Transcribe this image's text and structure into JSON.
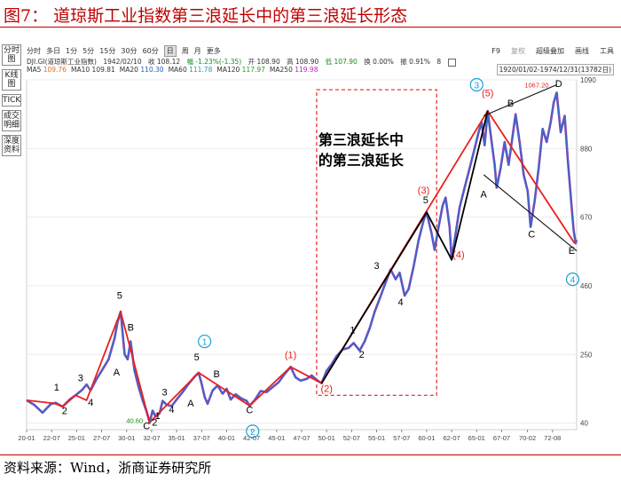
{
  "figure_title": "图7：  道琼斯工业指数第三浪延长中的第三浪延长形态",
  "source": "资料来源：Wind，浙商证券研究所",
  "sidebar": [
    "分时图",
    "K线图",
    "TICK",
    "成交明细",
    "深度资料"
  ],
  "toolbar": {
    "periods": [
      "分时",
      "多日",
      "1分",
      "5分",
      "15分",
      "30分",
      "60分",
      "日",
      "周",
      "月",
      "更多"
    ],
    "selected": "日",
    "right_items": [
      "F9",
      "复权",
      "超级叠加",
      "画线",
      "工具"
    ]
  },
  "info_line": {
    "ticker": "DJI.GI(道琼斯工业指数)",
    "date": "1942/02/10",
    "close": "收 108.12",
    "change": "幅 -1.23%(-1.35)",
    "open": "开 108.90",
    "high": "高 108.90",
    "low": "低 107.90",
    "turnover": "换 0.00%",
    "amplitude": "振 0.91%",
    "count": "8"
  },
  "ma_line": [
    {
      "label": "MA5",
      "value": "109.76",
      "color": "#e07020"
    },
    {
      "label": "MA10",
      "value": "109.81",
      "color": "#333333"
    },
    {
      "label": "MA20",
      "value": "110.30",
      "color": "#1f5fd0"
    },
    {
      "label": "MA60",
      "value": "111.78",
      "color": "#18a0c0"
    },
    {
      "label": "MA120",
      "value": "117.97",
      "color": "#20a020"
    },
    {
      "label": "MA250",
      "value": "119.98",
      "color": "#c020c0"
    }
  ],
  "range_label": "1920/01/02-1974/12/31(13782日)",
  "colors": {
    "title_red": "#c00000",
    "wave_red": "#e8201e",
    "price_blue": "#2f6fd0",
    "circle_blue": "#18a0d8",
    "label_red": "#e8201e"
  },
  "chart_data": {
    "type": "line",
    "title": "",
    "y_axis": {
      "ticks": [
        40,
        250,
        460,
        670,
        880,
        1090
      ],
      "ylim": [
        20,
        1090
      ]
    },
    "x_ticks": [
      "20-01",
      "22-07",
      "25-01",
      "27-07",
      "30-01",
      "32-07",
      "35-01",
      "37-07",
      "40-01",
      "42-07",
      "45-01",
      "47-07",
      "50-01",
      "52-07",
      "55-01",
      "57-07",
      "60-01",
      "62-07",
      "65-01",
      "67-07",
      "70-02",
      "72-08"
    ],
    "xlim": [
      1920.0,
      1975.0
    ],
    "series": [
      {
        "values": [
          [
            1920.0,
            110
          ],
          [
            1920.8,
            95
          ],
          [
            1921.6,
            72
          ],
          [
            1922.4,
            98
          ],
          [
            1922.9,
            102
          ],
          [
            1923.6,
            90
          ],
          [
            1924.3,
            112
          ],
          [
            1924.9,
            125
          ],
          [
            1925.5,
            140
          ],
          [
            1926.0,
            158
          ],
          [
            1926.4,
            140
          ],
          [
            1927.0,
            175
          ],
          [
            1927.6,
            205
          ],
          [
            1928.2,
            235
          ],
          [
            1928.8,
            300
          ],
          [
            1929.1,
            350
          ],
          [
            1929.4,
            381
          ],
          [
            1929.8,
            250
          ],
          [
            1930.1,
            235
          ],
          [
            1930.4,
            290
          ],
          [
            1930.8,
            200
          ],
          [
            1931.2,
            150
          ],
          [
            1931.6,
            110
          ],
          [
            1932.0,
            75
          ],
          [
            1932.3,
            42
          ],
          [
            1932.6,
            78
          ],
          [
            1932.9,
            60
          ],
          [
            1933.3,
            70
          ],
          [
            1933.6,
            108
          ],
          [
            1934.0,
            96
          ],
          [
            1934.5,
            92
          ],
          [
            1935.0,
            112
          ],
          [
            1935.6,
            135
          ],
          [
            1936.2,
            160
          ],
          [
            1936.8,
            182
          ],
          [
            1937.2,
            194
          ],
          [
            1937.5,
            160
          ],
          [
            1937.8,
            120
          ],
          [
            1938.1,
            99
          ],
          [
            1938.6,
            140
          ],
          [
            1939.1,
            155
          ],
          [
            1939.6,
            130
          ],
          [
            1940.0,
            145
          ],
          [
            1940.4,
            112
          ],
          [
            1940.9,
            128
          ],
          [
            1941.5,
            115
          ],
          [
            1942.0,
            108
          ],
          [
            1942.3,
            93
          ],
          [
            1942.8,
            110
          ],
          [
            1943.4,
            138
          ],
          [
            1944.0,
            135
          ],
          [
            1944.6,
            150
          ],
          [
            1945.2,
            165
          ],
          [
            1945.8,
            190
          ],
          [
            1946.4,
            212
          ],
          [
            1946.9,
            180
          ],
          [
            1947.4,
            170
          ],
          [
            1948.0,
            175
          ],
          [
            1948.5,
            186
          ],
          [
            1949.0,
            172
          ],
          [
            1949.5,
            162
          ],
          [
            1950.0,
            200
          ],
          [
            1950.5,
            220
          ],
          [
            1951.0,
            245
          ],
          [
            1951.6,
            265
          ],
          [
            1952.2,
            270
          ],
          [
            1952.7,
            285
          ],
          [
            1953.3,
            262
          ],
          [
            1953.8,
            290
          ],
          [
            1954.3,
            330
          ],
          [
            1954.8,
            380
          ],
          [
            1955.3,
            420
          ],
          [
            1955.9,
            470
          ],
          [
            1956.4,
            510
          ],
          [
            1956.9,
            480
          ],
          [
            1957.3,
            500
          ],
          [
            1957.8,
            430
          ],
          [
            1958.2,
            450
          ],
          [
            1958.7,
            520
          ],
          [
            1959.2,
            600
          ],
          [
            1959.7,
            660
          ],
          [
            1960.0,
            685
          ],
          [
            1960.5,
            620
          ],
          [
            1960.8,
            570
          ],
          [
            1961.2,
            640
          ],
          [
            1961.6,
            705
          ],
          [
            1961.9,
            730
          ],
          [
            1962.3,
            640
          ],
          [
            1962.5,
            540
          ],
          [
            1962.8,
            600
          ],
          [
            1963.3,
            700
          ],
          [
            1963.8,
            760
          ],
          [
            1964.3,
            820
          ],
          [
            1964.8,
            880
          ],
          [
            1965.2,
            930
          ],
          [
            1965.5,
            960
          ],
          [
            1965.8,
            890
          ],
          [
            1966.1,
            995
          ],
          [
            1966.5,
            900
          ],
          [
            1966.8,
            830
          ],
          [
            1967.0,
            760
          ],
          [
            1967.4,
            820
          ],
          [
            1967.8,
            900
          ],
          [
            1968.2,
            830
          ],
          [
            1968.6,
            920
          ],
          [
            1968.9,
            985
          ],
          [
            1969.3,
            900
          ],
          [
            1969.7,
            800
          ],
          [
            1970.1,
            750
          ],
          [
            1970.4,
            640
          ],
          [
            1970.8,
            720
          ],
          [
            1971.2,
            820
          ],
          [
            1971.6,
            940
          ],
          [
            1972.0,
            900
          ],
          [
            1972.4,
            960
          ],
          [
            1972.7,
            1020
          ],
          [
            1973.0,
            1051
          ],
          [
            1973.4,
            930
          ],
          [
            1973.8,
            980
          ],
          [
            1974.1,
            850
          ],
          [
            1974.5,
            700
          ],
          [
            1974.7,
            630
          ],
          [
            1974.9,
            590
          ],
          [
            1975.0,
            600
          ]
        ]
      },
      {
        "values": [
          [
            1920.0,
            110
          ],
          [
            1922.8,
            100
          ],
          [
            1923.6,
            90
          ],
          [
            1924.9,
            125
          ],
          [
            1926.0,
            110
          ],
          [
            1929.4,
            381
          ],
          [
            1932.3,
            42
          ],
          [
            1937.2,
            194
          ],
          [
            1942.3,
            93
          ],
          [
            1946.4,
            212
          ],
          [
            1949.5,
            162
          ],
          [
            1966.1,
            995
          ],
          [
            1974.8,
            590
          ]
        ]
      },
      {
        "values": [
          [
            1949.5,
            162
          ],
          [
            1960.0,
            685
          ],
          [
            1962.5,
            540
          ],
          [
            1966.1,
            995
          ]
        ]
      }
    ],
    "annotations": {
      "labels": [
        {
          "text": "1",
          "x": 1923.0,
          "y": 140,
          "color": "#000000"
        },
        {
          "text": "2",
          "x": 1923.8,
          "y": 68,
          "color": "#000000"
        },
        {
          "text": "3",
          "x": 1925.4,
          "y": 168,
          "color": "#000000"
        },
        {
          "text": "4",
          "x": 1926.4,
          "y": 94,
          "color": "#000000"
        },
        {
          "text": "5",
          "x": 1929.3,
          "y": 420,
          "color": "#000000"
        },
        {
          "text": "A",
          "x": 1929.0,
          "y": 185,
          "color": "#000000"
        },
        {
          "text": "B",
          "x": 1930.4,
          "y": 323,
          "color": "#000000"
        },
        {
          "text": "C",
          "x": 1932.0,
          "y": 22,
          "color": "#000000"
        },
        {
          "text": "1",
          "x": 1933.1,
          "y": 52,
          "color": "#000000"
        },
        {
          "text": "2",
          "x": 1932.8,
          "y": 32,
          "color": "#000000"
        },
        {
          "text": "3",
          "x": 1933.8,
          "y": 125,
          "color": "#000000"
        },
        {
          "text": "4",
          "x": 1934.5,
          "y": 72,
          "color": "#000000"
        },
        {
          "text": "5",
          "x": 1937.0,
          "y": 232,
          "color": "#000000"
        },
        {
          "text": "A",
          "x": 1936.4,
          "y": 90,
          "color": "#000000"
        },
        {
          "text": "B",
          "x": 1939.0,
          "y": 180,
          "color": "#000000"
        },
        {
          "text": "C",
          "x": 1942.3,
          "y": 70,
          "color": "#000000"
        },
        {
          "text": "1",
          "x": 1952.6,
          "y": 315,
          "color": "#000000"
        },
        {
          "text": "2",
          "x": 1953.5,
          "y": 240,
          "color": "#000000"
        },
        {
          "text": "3",
          "x": 1955.0,
          "y": 512,
          "color": "#000000"
        },
        {
          "text": "4",
          "x": 1957.4,
          "y": 400,
          "color": "#000000"
        },
        {
          "text": "5",
          "x": 1959.9,
          "y": 712,
          "color": "#000000"
        },
        {
          "text": "B",
          "x": 1968.4,
          "y": 1008,
          "color": "#000000"
        },
        {
          "text": "D",
          "x": 1973.2,
          "y": 1068,
          "color": "#000000"
        },
        {
          "text": "A",
          "x": 1965.7,
          "y": 730,
          "color": "#000000"
        },
        {
          "text": "C",
          "x": 1970.5,
          "y": 608,
          "color": "#000000"
        },
        {
          "text": "E",
          "x": 1974.5,
          "y": 558,
          "color": "#000000"
        },
        {
          "text": "(1)",
          "x": 1946.4,
          "y": 238,
          "color": "#e8201e"
        },
        {
          "text": "(2)",
          "x": 1950.0,
          "y": 135,
          "color": "#e8201e"
        },
        {
          "text": "(3)",
          "x": 1959.7,
          "y": 742,
          "color": "#e8201e"
        },
        {
          "text": "(4)",
          "x": 1963.2,
          "y": 545,
          "color": "#e8201e"
        },
        {
          "text": "(5)",
          "x": 1966.1,
          "y": 1040,
          "color": "#e8201e"
        },
        {
          "text": "40.60",
          "x": 1930.8,
          "y": 40,
          "color": "#1a8a1a"
        },
        {
          "text": "1067.20",
          "x": 1971.0,
          "y": 1067,
          "color": "#e8201e"
        }
      ],
      "circled": [
        {
          "text": "1",
          "x": 1937.8,
          "y": 290
        },
        {
          "text": "2",
          "x": 1942.6,
          "y": 15
        },
        {
          "text": "3",
          "x": 1965.0,
          "y": 1075
        },
        {
          "text": "4",
          "x": 1974.6,
          "y": 480
        }
      ],
      "trendlines": [
        {
          "points": [
            [
              1965.7,
              980
            ],
            [
              1973.0,
              1075
            ]
          ]
        },
        {
          "points": [
            [
              1965.7,
              800
            ],
            [
              1975.0,
              567
            ]
          ]
        }
      ],
      "box": {
        "x_range": [
          1949.0,
          1961.0
        ],
        "y_range": [
          125,
          1060
        ],
        "text": [
          "第三浪延长中",
          "的第三浪延长"
        ]
      }
    }
  }
}
